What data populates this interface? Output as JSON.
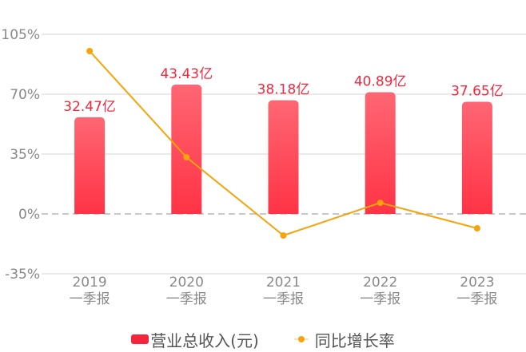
{
  "chart_data": {
    "type": "bar+line",
    "title": "",
    "categories": [
      "2019\n一季报",
      "2020\n一季报",
      "2021\n一季报",
      "2022\n一季报",
      "2023\n一季报"
    ],
    "category_years": [
      "2019",
      "2020",
      "2021",
      "2022",
      "2023"
    ],
    "category_period": "一季报",
    "series": [
      {
        "name": "营业总收入(元)",
        "type": "bar",
        "values": [
          32.47,
          43.43,
          38.18,
          40.89,
          37.65
        ],
        "labels": [
          "32.47亿",
          "43.43亿",
          "38.18亿",
          "40.89亿",
          "37.65亿"
        ],
        "unit": "亿",
        "color": "#f5253d"
      },
      {
        "name": "同比增长率",
        "type": "line",
        "values": [
          95.2,
          33.1,
          -12.6,
          6.5,
          -8.4
        ],
        "unit": "%",
        "color": "#f7a30a"
      }
    ],
    "y_axis": {
      "ticks": [
        "105%",
        "70%",
        "35%",
        "0%",
        "-35%"
      ],
      "tick_values": [
        105,
        70,
        35,
        0,
        -35
      ],
      "ylim": [
        -35,
        105
      ]
    },
    "xlabel": "",
    "ylabel": "",
    "grid": true,
    "legend_position": "bottom"
  },
  "legend": {
    "items": [
      {
        "label": "营业总收入(元)",
        "kind": "bar"
      },
      {
        "label": "同比增长率",
        "kind": "line"
      }
    ]
  },
  "colors": {
    "bar_top": "#ff6673",
    "bar_bottom": "#ff3346",
    "label": "#f5253d",
    "line": "#f7a30a",
    "grid": "#e3e3e3",
    "zero_line": "#c8c8c8",
    "tick_text": "#888888"
  }
}
